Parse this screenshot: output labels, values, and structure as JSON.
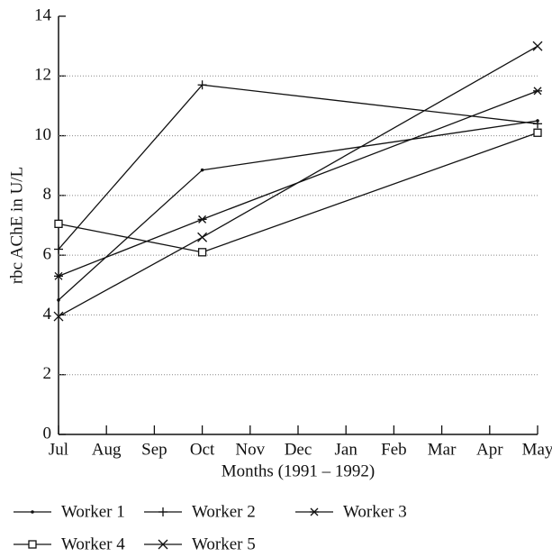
{
  "chart_data": {
    "type": "line",
    "x_label": "Months (1991 – 1992)",
    "y_label": "rbc AChE in U/L",
    "categories": [
      "Jul",
      "Aug",
      "Sep",
      "Oct",
      "Nov",
      "Dec",
      "Jan",
      "Feb",
      "Mar",
      "Apr",
      "May"
    ],
    "ylim": [
      0,
      14
    ],
    "yticks": [
      0,
      2,
      4,
      6,
      8,
      10,
      12,
      14
    ],
    "grid": true,
    "series": [
      {
        "name": "Worker 1",
        "marker": "dot",
        "color": "#111111",
        "x": [
          "Jul",
          "Oct",
          "May"
        ],
        "values": [
          4.5,
          8.85,
          10.5
        ]
      },
      {
        "name": "Worker 2",
        "marker": "plus",
        "color": "#111111",
        "x": [
          "Jul",
          "Oct",
          "May"
        ],
        "values": [
          6.2,
          11.7,
          10.4
        ]
      },
      {
        "name": "Worker 3",
        "marker": "asterisk",
        "color": "#111111",
        "x": [
          "Jul",
          "Oct",
          "May"
        ],
        "values": [
          5.3,
          7.2,
          11.5
        ]
      },
      {
        "name": "Worker 4",
        "marker": "square",
        "color": "#111111",
        "x": [
          "Jul",
          "Oct",
          "May"
        ],
        "values": [
          7.05,
          6.1,
          10.1
        ]
      },
      {
        "name": "Worker 5",
        "marker": "cross",
        "color": "#111111",
        "x": [
          "Jul",
          "Oct",
          "May"
        ],
        "values": [
          3.95,
          6.6,
          13.0
        ]
      }
    ]
  }
}
